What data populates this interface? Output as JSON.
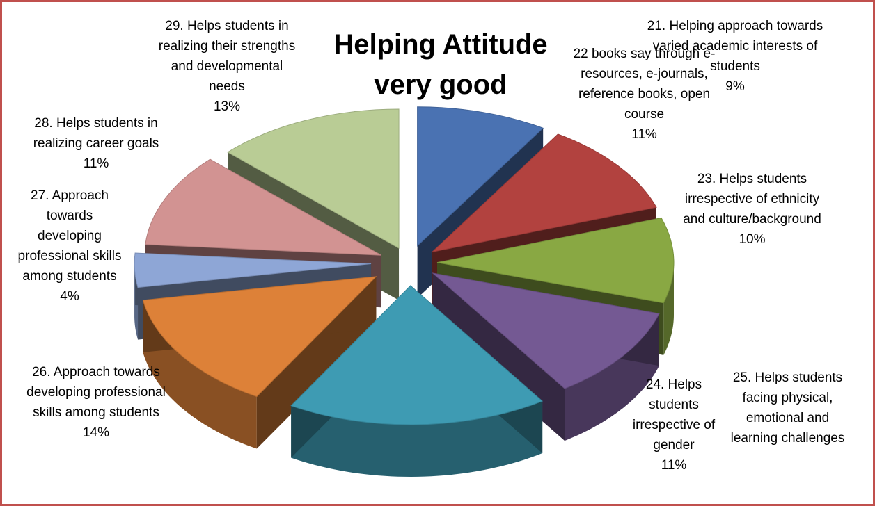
{
  "chart_data": {
    "type": "pie",
    "title": "Helping Attitude very good",
    "labels": [
      "21. Helping approach towards varied academic interests of students",
      "22 books say through e-resources, e-journals, reference books, open course",
      "23. Helps students irrespective of ethnicity and culture/background",
      "24. Helps students irrespective of gender",
      "25. Helps students facing physical, emotional and learning challenges",
      "26. Approach towards developing professional skills among students",
      "27. Approach towards developing professional skills among students",
      "28. Helps students in realizing career goals",
      "29. Helps students in realizing their strengths and developmental needs"
    ],
    "values": [
      9,
      11,
      10,
      11,
      18,
      14,
      4,
      11,
      13
    ],
    "value_labels": [
      "9%",
      "11%",
      "10%",
      "11%",
      "",
      "14%",
      "4%",
      "11%",
      "13%"
    ],
    "colors": [
      "#4a72b2",
      "#b2423f",
      "#89a843",
      "#745993",
      "#3e9bb3",
      "#dd8138",
      "#8ea6d6",
      "#d29392",
      "#b9cc95"
    ],
    "style": "3d exploded pie"
  }
}
